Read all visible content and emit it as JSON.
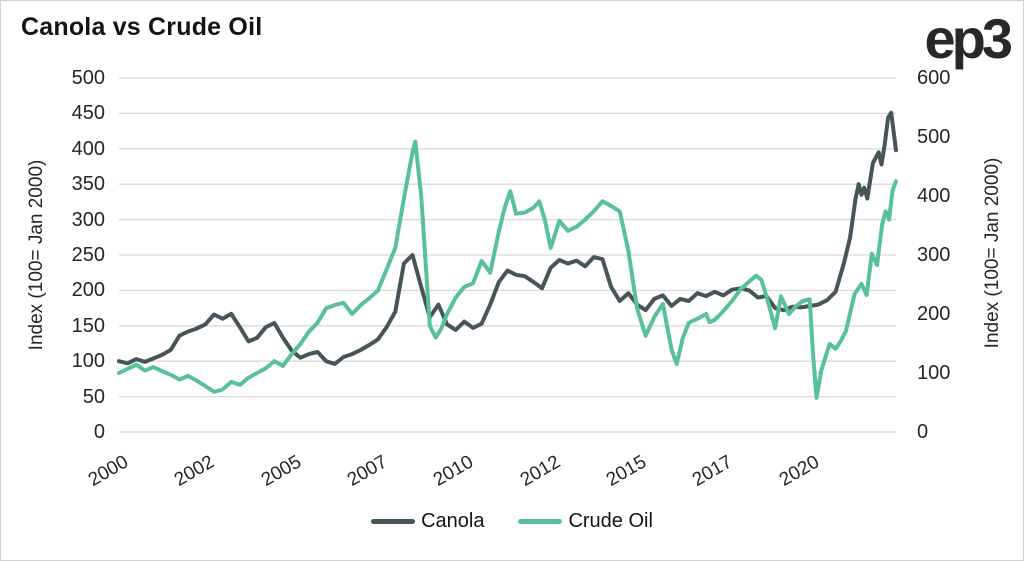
{
  "header": {
    "title": "Canola vs Crude Oil",
    "logo": "ep3"
  },
  "colors": {
    "canola_line": "#45555a",
    "crude_oil_line": "#58c19a",
    "gridline": "#d9d9d9",
    "title_text": "#141414",
    "tick_text": "#262626",
    "logo_text": "#2b2728",
    "border": "#d2d2d2",
    "background": "#ffffff"
  },
  "chart_data": {
    "type": "line",
    "title": "Canola vs Crude Oil",
    "grid": "horizontal",
    "legend_position": "bottom-center",
    "x_range_years": [
      2000,
      2022.5
    ],
    "x_ticks": [
      {
        "label": "2000",
        "pos": 2000
      },
      {
        "label": "2002",
        "pos": 2002.5
      },
      {
        "label": "2005",
        "pos": 2005
      },
      {
        "label": "2007",
        "pos": 2007.5
      },
      {
        "label": "2010",
        "pos": 2010
      },
      {
        "label": "2012",
        "pos": 2012.5
      },
      {
        "label": "2015",
        "pos": 2015
      },
      {
        "label": "2017",
        "pos": 2017.5
      },
      {
        "label": "2020",
        "pos": 2020
      }
    ],
    "left_axis": {
      "label": "Index (100= Jan 2000)",
      "range": [
        0,
        500
      ],
      "ticks": [
        0,
        50,
        100,
        150,
        200,
        250,
        300,
        350,
        400,
        450,
        500
      ]
    },
    "right_axis": {
      "label": "Index (100= Jan 2000)",
      "range": [
        0,
        600
      ],
      "ticks": [
        0,
        100,
        200,
        300,
        400,
        500,
        600
      ]
    },
    "series": [
      {
        "name": "Canola",
        "axis": "left",
        "color": "#45555a",
        "x": [
          2000.0,
          2000.25,
          2000.5,
          2000.75,
          2001.0,
          2001.25,
          2001.5,
          2001.75,
          2002.0,
          2002.25,
          2002.5,
          2002.75,
          2003.0,
          2003.25,
          2003.5,
          2003.75,
          2004.0,
          2004.25,
          2004.5,
          2004.75,
          2005.0,
          2005.25,
          2005.5,
          2005.75,
          2006.0,
          2006.25,
          2006.5,
          2006.75,
          2007.0,
          2007.25,
          2007.5,
          2007.75,
          2008.0,
          2008.25,
          2008.5,
          2008.75,
          2009.0,
          2009.25,
          2009.5,
          2009.75,
          2010.0,
          2010.25,
          2010.5,
          2010.75,
          2011.0,
          2011.25,
          2011.5,
          2011.75,
          2012.0,
          2012.25,
          2012.5,
          2012.75,
          2013.0,
          2013.25,
          2013.5,
          2013.75,
          2014.0,
          2014.25,
          2014.5,
          2014.75,
          2015.0,
          2015.25,
          2015.5,
          2015.75,
          2016.0,
          2016.25,
          2016.5,
          2016.75,
          2017.0,
          2017.25,
          2017.5,
          2017.75,
          2018.0,
          2018.25,
          2018.5,
          2018.75,
          2019.0,
          2019.25,
          2019.5,
          2019.75,
          2020.0,
          2020.25,
          2020.5,
          2020.75,
          2021.0,
          2021.17,
          2021.33,
          2021.42,
          2021.5,
          2021.58,
          2021.67,
          2021.83,
          2022.0,
          2022.08,
          2022.17,
          2022.27,
          2022.36,
          2022.5
        ],
        "values": [
          100,
          97,
          103,
          99,
          104,
          109,
          116,
          136,
          142,
          146,
          152,
          166,
          160,
          167,
          148,
          128,
          133,
          148,
          154,
          133,
          115,
          105,
          110,
          113,
          100,
          96,
          106,
          110,
          116,
          123,
          131,
          148,
          170,
          238,
          250,
          205,
          162,
          180,
          152,
          144,
          156,
          147,
          153,
          180,
          212,
          228,
          222,
          220,
          212,
          203,
          232,
          243,
          238,
          242,
          234,
          247,
          244,
          205,
          185,
          196,
          180,
          172,
          188,
          193,
          178,
          188,
          185,
          196,
          192,
          198,
          193,
          201,
          203,
          200,
          190,
          192,
          175,
          172,
          177,
          176,
          178,
          180,
          186,
          198,
          240,
          275,
          330,
          350,
          335,
          345,
          330,
          380,
          395,
          378,
          405,
          444,
          451,
          398
        ]
      },
      {
        "name": "Crude Oil",
        "axis": "right",
        "color": "#58c19a",
        "x": [
          2000.0,
          2000.25,
          2000.5,
          2000.75,
          2001.0,
          2001.25,
          2001.5,
          2001.75,
          2002.0,
          2002.25,
          2002.5,
          2002.75,
          2003.0,
          2003.25,
          2003.5,
          2003.75,
          2004.0,
          2004.25,
          2004.5,
          2004.75,
          2005.0,
          2005.25,
          2005.5,
          2005.75,
          2006.0,
          2006.25,
          2006.5,
          2006.75,
          2007.0,
          2007.25,
          2007.5,
          2007.75,
          2008.0,
          2008.25,
          2008.5,
          2008.58,
          2008.75,
          2009.0,
          2009.17,
          2009.33,
          2009.5,
          2009.75,
          2010.0,
          2010.25,
          2010.5,
          2010.75,
          2011.0,
          2011.17,
          2011.33,
          2011.5,
          2011.75,
          2012.0,
          2012.17,
          2012.33,
          2012.5,
          2012.75,
          2013.0,
          2013.25,
          2013.5,
          2013.75,
          2014.0,
          2014.25,
          2014.5,
          2014.75,
          2015.0,
          2015.25,
          2015.5,
          2015.75,
          2016.0,
          2016.15,
          2016.33,
          2016.5,
          2016.75,
          2017.0,
          2017.1,
          2017.25,
          2017.5,
          2017.75,
          2018.0,
          2018.25,
          2018.45,
          2018.6,
          2018.75,
          2019.0,
          2019.17,
          2019.4,
          2019.6,
          2019.8,
          2020.0,
          2020.1,
          2020.2,
          2020.33,
          2020.5,
          2020.58,
          2020.75,
          2020.9,
          2021.05,
          2021.3,
          2021.5,
          2021.65,
          2021.8,
          2021.95,
          2022.1,
          2022.2,
          2022.3,
          2022.4,
          2022.5
        ],
        "values": [
          100,
          107,
          114,
          104,
          110,
          103,
          97,
          89,
          95,
          87,
          78,
          68,
          72,
          85,
          80,
          92,
          100,
          108,
          120,
          112,
          132,
          149,
          170,
          185,
          210,
          215,
          219,
          200,
          215,
          227,
          240,
          276,
          312,
          396,
          474,
          492,
          400,
          180,
          160,
          175,
          200,
          228,
          246,
          252,
          290,
          270,
          340,
          380,
          408,
          370,
          372,
          380,
          391,
          360,
          312,
          358,
          341,
          348,
          360,
          374,
          391,
          383,
          374,
          307,
          210,
          163,
          195,
          217,
          140,
          115,
          160,
          185,
          192,
          200,
          186,
          190,
          205,
          222,
          242,
          255,
          265,
          258,
          230,
          176,
          230,
          200,
          213,
          222,
          225,
          130,
          58,
          103,
          135,
          149,
          141,
          154,
          171,
          234,
          251,
          232,
          302,
          283,
          352,
          374,
          360,
          409,
          425
        ]
      }
    ]
  }
}
